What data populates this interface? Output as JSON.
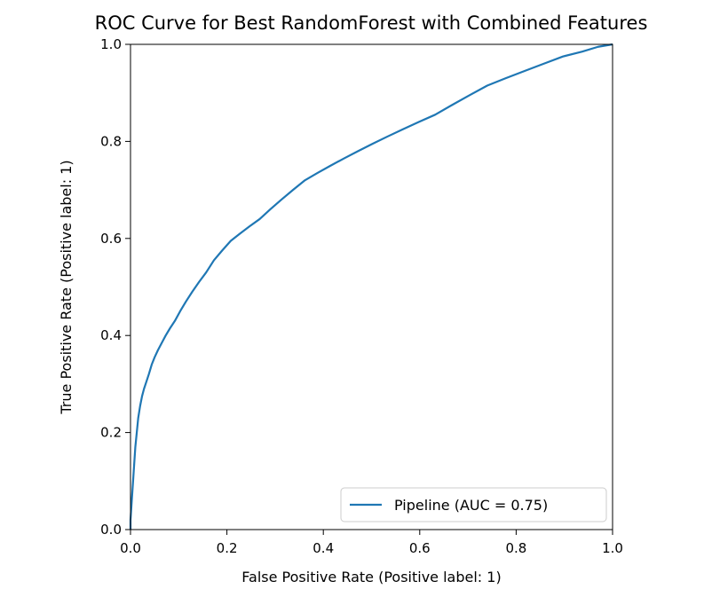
{
  "chart_data": {
    "type": "line",
    "title": "ROC Curve for Best RandomForest with Combined Features",
    "xlabel": "False Positive Rate (Positive label: 1)",
    "ylabel": "True Positive Rate (Positive label: 1)",
    "xlim": [
      0,
      1
    ],
    "ylim": [
      0,
      1
    ],
    "x_ticks": [
      "0.0",
      "0.2",
      "0.4",
      "0.6",
      "0.8",
      "1.0"
    ],
    "y_ticks": [
      "0.0",
      "0.2",
      "0.4",
      "0.6",
      "0.8",
      "1.0"
    ],
    "grid": false,
    "legend_position": "lower-right",
    "series": [
      {
        "name": "Pipeline (AUC = 0.75)",
        "color": "#1f77b4",
        "x": [
          0,
          0,
          0.002,
          0.004,
          0.006,
          0.008,
          0.01,
          0.013,
          0.016,
          0.02,
          0.024,
          0.028,
          0.033,
          0.038,
          0.044,
          0.05,
          0.057,
          0.065,
          0.073,
          0.082,
          0.092,
          0.103,
          0.115,
          0.128,
          0.142,
          0.157,
          0.173,
          0.19,
          0.208,
          0.227,
          0.247,
          0.268,
          0.29,
          0.313,
          0.337,
          0.362,
          0.388,
          0.415,
          0.443,
          0.472,
          0.502,
          0.533,
          0.565,
          0.598,
          0.632,
          0.667,
          0.703,
          0.74,
          0.778,
          0.817,
          0.857,
          0.897,
          0.937,
          0.97,
          1.0
        ],
        "y": [
          0,
          0.02,
          0.05,
          0.08,
          0.11,
          0.14,
          0.17,
          0.2,
          0.23,
          0.255,
          0.275,
          0.29,
          0.305,
          0.32,
          0.34,
          0.355,
          0.37,
          0.385,
          0.4,
          0.415,
          0.43,
          0.45,
          0.47,
          0.49,
          0.51,
          0.53,
          0.555,
          0.575,
          0.595,
          0.61,
          0.625,
          0.64,
          0.66,
          0.68,
          0.7,
          0.72,
          0.735,
          0.75,
          0.765,
          0.78,
          0.795,
          0.81,
          0.825,
          0.84,
          0.855,
          0.875,
          0.895,
          0.915,
          0.93,
          0.945,
          0.96,
          0.975,
          0.985,
          0.995,
          1.0
        ]
      }
    ]
  }
}
